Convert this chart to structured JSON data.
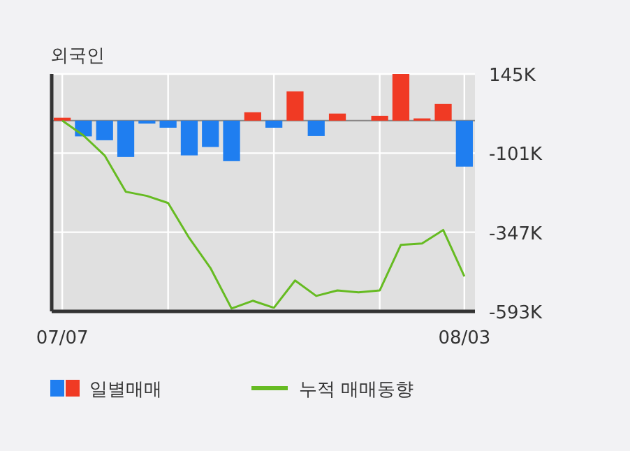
{
  "chart_data": {
    "type": "bar",
    "title": "외국인",
    "categories": [
      "07/07",
      null,
      null,
      null,
      null,
      null,
      null,
      null,
      null,
      null,
      null,
      null,
      null,
      null,
      null,
      null,
      null,
      null,
      null,
      "08/03"
    ],
    "series": [
      {
        "name": "일별매매",
        "colors": [
          "#f03a24",
          "#1f7ef0",
          "#1f7ef0",
          "#1f7ef0",
          "#1f7ef0",
          "#1f7ef0",
          "#1f7ef0",
          "#1f7ef0",
          "#1f7ef0",
          "#f03a24",
          "#1f7ef0",
          "#f03a24",
          "#1f7ef0",
          "#f03a24",
          "#f03a24",
          "#f03a24",
          "#f03a24",
          "#f03a24",
          "#f03a24",
          "#1f7ef0"
        ],
        "values": [
          9,
          -49,
          -61,
          -113,
          -9,
          -22,
          -108,
          -82,
          -126,
          26,
          -22,
          91,
          -48,
          22,
          0,
          15,
          145,
          7,
          52,
          -143
        ]
      },
      {
        "name": "누적 매매동향",
        "type": "line",
        "color": "#66bb22",
        "values": [
          0,
          -46,
          -108,
          -221,
          -234,
          -256,
          -365,
          -458,
          -584,
          -560,
          -582,
          -497,
          -545,
          -528,
          -534,
          -528,
          -386,
          -382,
          -340,
          -484
        ]
      }
    ],
    "ylim": [
      -593,
      145
    ],
    "yticks": [
      {
        "value": 145,
        "label": "145K"
      },
      {
        "value": -101,
        "label": "-101K"
      },
      {
        "value": -347,
        "label": "-347K"
      },
      {
        "value": -593,
        "label": "-593K"
      }
    ],
    "grid": true,
    "legend": "bottom"
  }
}
